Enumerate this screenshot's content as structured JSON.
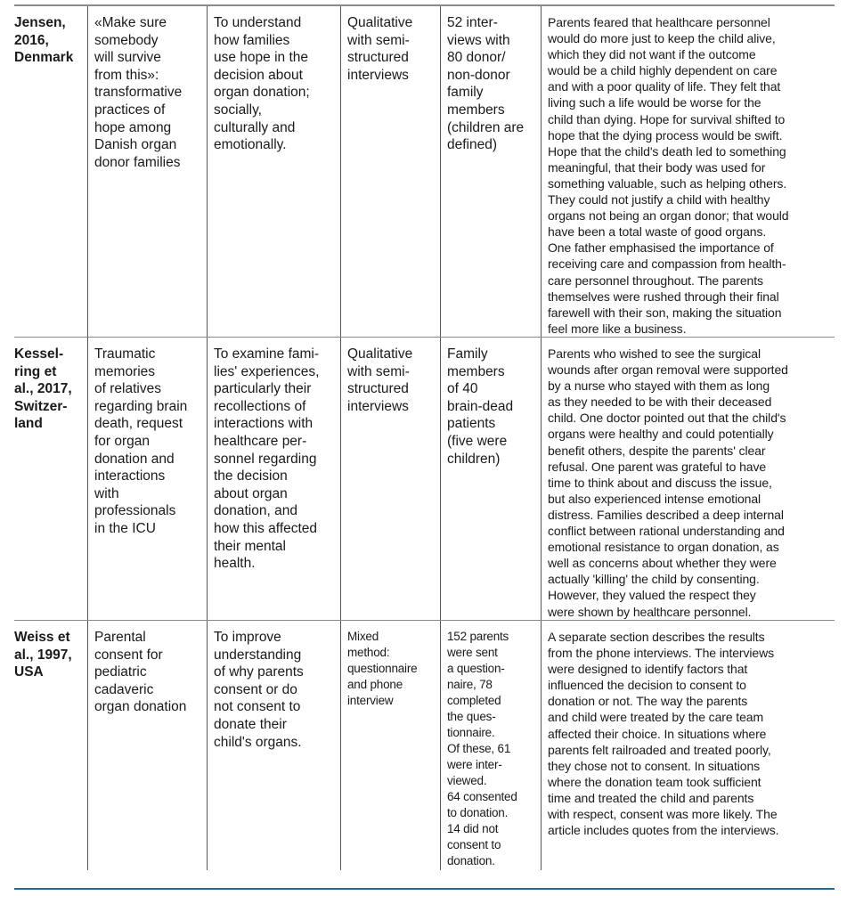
{
  "accent_color": "#1f6d94",
  "rows": [
    {
      "study": "Jensen,\n2016,\nDenmark",
      "title": "«Make sure\nsomebody\nwill survive\nfrom this»:\ntransformative\npractices of\nhope among\nDanish organ\ndonor families",
      "aim": "To understand\nhow families\nuse hope in the\ndecision about\norgan donation;\nsocially,\nculturally and\nemotionally.",
      "method": "Qualitative\nwith semi-\nstructured\ninterviews",
      "sample": "52 inter-\nviews with\n80 donor/\nnon-donor\nfamily\nmembers\n(children are\ndefined)",
      "findings": "Parents feared that healthcare personnel\nwould do more just to keep the child alive,\nwhich they did not want if the outcome\nwould be a child highly dependent on care\nand with a poor quality of life. They felt that\nliving such a life would be worse for the\nchild than dying. Hope for survival shifted to\nhope that the dying process would be swift.\nHope that the child's death led to something\nmeaningful, that their body was used for\nsomething valuable, such as helping others.\nThey could not justify a child with healthy\norgans not being an organ donor; that would\nhave been a total waste of good organs.\nOne father emphasised the importance of\nreceiving care and compassion from health-\ncare personnel throughout. The parents\nthemselves were rushed through their final\nfarewell with their son, making the situation\nfeel more like a business."
    },
    {
      "study": "Kessel-\nring et\nal., 2017,\nSwitzer-\nland",
      "title": "Traumatic\nmemories\nof relatives\nregarding brain\ndeath, request\nfor organ\ndonation and\ninteractions\nwith\nprofessionals\nin the ICU",
      "aim": "To examine fami-\nlies' experiences,\nparticularly their\nrecollections of\ninteractions with\nhealthcare per-\nsonnel regarding\nthe decision\nabout organ\ndonation, and\nhow this affected\ntheir mental\nhealth.",
      "method": "Qualitative\nwith semi-\nstructured\ninterviews",
      "sample": "Family\nmembers\nof 40\nbrain-dead\npatients\n(five were\nchildren)",
      "findings": "Parents who wished to see the surgical\nwounds after organ removal were supported\nby a nurse who stayed with them as long\nas they needed to be with their deceased\nchild. One doctor pointed out that the child's\norgans were healthy and could potentially\nbenefit others, despite the parents' clear\nrefusal. One parent was grateful to have\ntime to think about and discuss the issue,\nbut also experienced intense emotional\ndistress. Families described a deep internal\nconflict between rational understanding and\nemotional resistance to organ donation, as\nwell as concerns about whether they were\nactually 'killing' the child by consenting.\nHowever, they valued the respect they\nwere shown by healthcare personnel."
    },
    {
      "study": "Weiss et\nal., 1997,\nUSA",
      "title": "Parental\nconsent for\npediatric\ncadaveric\norgan donation",
      "aim": "To improve\nunderstanding\nof why parents\nconsent or do\nnot consent to\ndonate their\nchild's organs.",
      "method": "Mixed\nmethod:\nquestionnaire\nand phone\ninterview",
      "sample": "152 parents\nwere sent\na question-\nnaire, 78\ncompleted\nthe ques-\ntionnaire.\nOf these, 61\nwere inter-\nviewed.\n64 consented\nto donation.\n14 did not\nconsent to\ndonation.",
      "findings": "A separate section describes the results\nfrom the phone interviews. The interviews\nwere designed to identify factors that\ninfluenced the decision to consent to\ndonation or not. The way the parents\nand child were treated by the care team\naffected their choice. In situations where\nparents felt railroaded and treated poorly,\nthey chose not to consent. In situations\nwhere the donation team took sufficient\ntime and treated the child and parents\nwith respect, consent was more likely. The\narticle includes quotes from the interviews."
    }
  ]
}
